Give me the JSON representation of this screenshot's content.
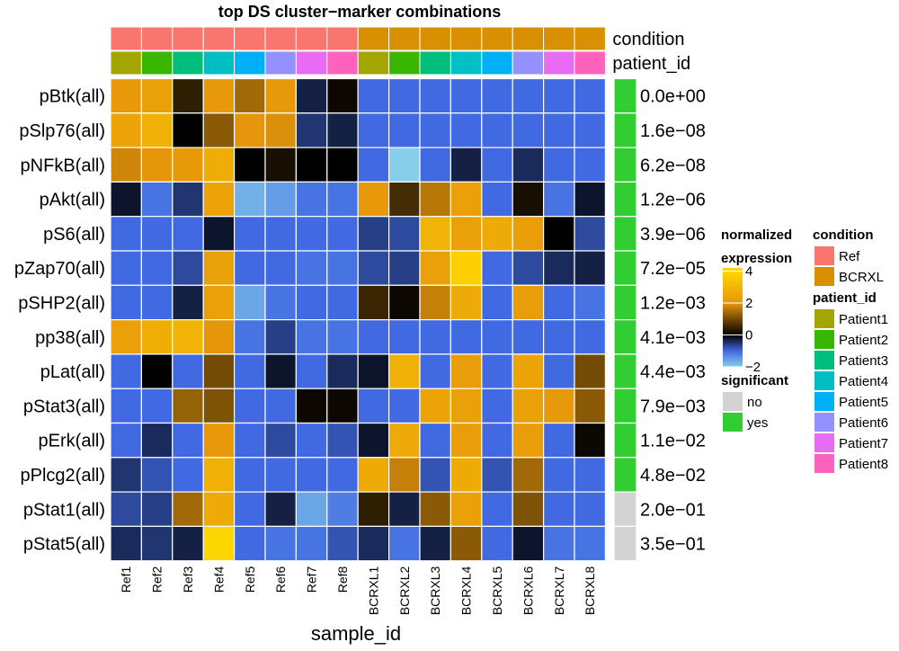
{
  "chart_data": {
    "type": "heatmap",
    "title": "top DS cluster−marker combinations",
    "xlabel": "sample_id",
    "samples": [
      "Ref1",
      "Ref2",
      "Ref3",
      "Ref4",
      "Ref5",
      "Ref6",
      "Ref7",
      "Ref8",
      "BCRXL1",
      "BCRXL2",
      "BCRXL3",
      "BCRXL4",
      "BCRXL5",
      "BCRXL6",
      "BCRXL7",
      "BCRXL8"
    ],
    "rows": [
      "pBtk(all)",
      "pSlp76(all)",
      "pNFkB(all)",
      "pAkt(all)",
      "pS6(all)",
      "pZap70(all)",
      "pSHP2(all)",
      "pp38(all)",
      "pLat(all)",
      "pStat3(all)",
      "pErk(all)",
      "pPlcg2(all)",
      "pStat1(all)",
      "pStat5(all)"
    ],
    "values": [
      [
        2.1,
        2.3,
        0.4,
        2.1,
        1.4,
        2.1,
        -0.3,
        0.1,
        -1.0,
        -1.0,
        -1.0,
        -1.0,
        -1.0,
        -1.0,
        -1.0,
        -1.0
      ],
      [
        2.4,
        2.8,
        0.0,
        1.2,
        2.0,
        1.9,
        -0.5,
        -0.3,
        -1.0,
        -1.0,
        -1.0,
        -1.0,
        -1.0,
        -1.0,
        -1.0,
        -1.0
      ],
      [
        1.8,
        2.0,
        2.1,
        2.7,
        0.0,
        0.2,
        0.0,
        0.0,
        -1.0,
        -2.0,
        -1.0,
        -0.3,
        -1.0,
        -0.4,
        -1.0,
        -1.0
      ],
      [
        -0.2,
        -1.1,
        -0.5,
        2.4,
        -1.7,
        -1.5,
        -1.1,
        -1.1,
        2.1,
        0.6,
        1.6,
        2.3,
        -1.0,
        0.2,
        -1.1,
        -0.2
      ],
      [
        -1.0,
        -1.0,
        -1.0,
        -0.2,
        -1.0,
        -1.0,
        -1.0,
        -1.0,
        -0.6,
        -0.7,
        2.9,
        2.3,
        2.6,
        2.2,
        0.0,
        -0.7
      ],
      [
        -1.0,
        -1.0,
        -0.7,
        2.3,
        -1.0,
        -1.0,
        -1.1,
        -1.1,
        -0.7,
        -0.6,
        2.3,
        3.8,
        -1.0,
        -0.7,
        -0.4,
        -0.3
      ],
      [
        -1.0,
        -1.0,
        -0.3,
        2.3,
        -1.6,
        -1.1,
        -1.0,
        -1.0,
        0.5,
        0.1,
        1.7,
        2.6,
        -1.0,
        2.2,
        -1.0,
        -1.1
      ],
      [
        2.3,
        2.7,
        2.9,
        2.0,
        -1.1,
        -0.6,
        -1.1,
        -1.1,
        -1.0,
        -1.0,
        -1.0,
        -1.0,
        -1.0,
        -1.0,
        -1.0,
        -1.0
      ],
      [
        -1.0,
        0.0,
        -1.0,
        1.0,
        -1.0,
        -0.2,
        -1.0,
        -0.4,
        -0.2,
        2.8,
        -1.0,
        2.2,
        -1.0,
        2.4,
        -1.0,
        1.0
      ],
      [
        -1.0,
        -1.0,
        1.3,
        1.1,
        -1.0,
        -1.0,
        0.1,
        0.1,
        -1.0,
        -1.0,
        2.4,
        2.3,
        -1.0,
        2.3,
        2.1,
        1.2
      ],
      [
        -1.0,
        -0.4,
        -1.0,
        2.1,
        -1.0,
        -0.7,
        -1.0,
        -0.8,
        -0.2,
        2.6,
        -1.0,
        2.2,
        -1.0,
        2.2,
        -1.0,
        0.1
      ],
      [
        -0.5,
        -0.8,
        -1.0,
        2.8,
        -1.0,
        -1.0,
        -1.0,
        -1.0,
        2.6,
        1.7,
        -0.8,
        2.6,
        -0.8,
        1.4,
        -1.0,
        -1.0
      ],
      [
        -0.7,
        -0.6,
        1.4,
        2.6,
        -1.0,
        -0.3,
        -1.6,
        -1.2,
        0.4,
        -0.3,
        1.2,
        2.3,
        -1.0,
        1.1,
        -1.0,
        -1.0
      ],
      [
        -0.4,
        -0.5,
        -0.3,
        4.0,
        -1.0,
        -1.1,
        -1.1,
        -0.8,
        -0.4,
        -1.1,
        -0.3,
        1.2,
        -1.0,
        -0.2,
        -1.1,
        -1.1
      ]
    ],
    "condition": [
      "Ref",
      "Ref",
      "Ref",
      "Ref",
      "Ref",
      "Ref",
      "Ref",
      "Ref",
      "BCRXL",
      "BCRXL",
      "BCRXL",
      "BCRXL",
      "BCRXL",
      "BCRXL",
      "BCRXL",
      "BCRXL"
    ],
    "patient_id": [
      "Patient1",
      "Patient2",
      "Patient3",
      "Patient4",
      "Patient5",
      "Patient6",
      "Patient7",
      "Patient8",
      "Patient1",
      "Patient2",
      "Patient3",
      "Patient4",
      "Patient5",
      "Patient6",
      "Patient7",
      "Patient8"
    ],
    "adj_p_labels": [
      "0.0e+00",
      "1.6e−08",
      "6.2e−08",
      "1.2e−06",
      "3.9e−06",
      "7.2e−05",
      "1.2e−03",
      "4.1e−03",
      "4.4e−03",
      "7.9e−03",
      "1.1e−02",
      "4.8e−02",
      "2.0e−01",
      "3.5e−01"
    ],
    "significant": [
      "yes",
      "yes",
      "yes",
      "yes",
      "yes",
      "yes",
      "yes",
      "yes",
      "yes",
      "yes",
      "yes",
      "yes",
      "no",
      "no"
    ],
    "annotation_labels": {
      "condition": "condition",
      "patient_id": "patient_id"
    },
    "legends": {
      "expression": {
        "title_line1": "normalized",
        "title_line2": "expression",
        "range": [
          -2,
          4.2
        ],
        "ticks": [
          {
            "value": 4,
            "label": "4"
          },
          {
            "value": 2,
            "label": "2"
          },
          {
            "value": 0,
            "label": "0"
          },
          {
            "value": -2,
            "label": "−2"
          }
        ],
        "color_stops": [
          {
            "value": -2,
            "color": "#87CEEB"
          },
          {
            "value": -1,
            "color": "#4169E1"
          },
          {
            "value": 0,
            "color": "#000000"
          },
          {
            "value": 2,
            "color": "#E6960A"
          },
          {
            "value": 4,
            "color": "#FFD700"
          }
        ]
      },
      "significant": {
        "title": "significant",
        "entries": [
          {
            "label": "no",
            "color": "#D3D3D3"
          },
          {
            "label": "yes",
            "color": "#32CD32"
          }
        ]
      },
      "condition": {
        "title": "condition",
        "entries": [
          {
            "label": "Ref",
            "color": "#F8766D"
          },
          {
            "label": "BCRXL",
            "color": "#D89000"
          }
        ]
      },
      "patient_id": {
        "title": "patient_id",
        "entries": [
          {
            "label": "Patient1",
            "color": "#A3A500"
          },
          {
            "label": "Patient2",
            "color": "#39B600"
          },
          {
            "label": "Patient3",
            "color": "#00BF7D"
          },
          {
            "label": "Patient4",
            "color": "#00BFC4"
          },
          {
            "label": "Patient5",
            "color": "#00B0F6"
          },
          {
            "label": "Patient6",
            "color": "#9590FF"
          },
          {
            "label": "Patient7",
            "color": "#E76BF3"
          },
          {
            "label": "Patient8",
            "color": "#FF62BC"
          }
        ]
      }
    }
  }
}
